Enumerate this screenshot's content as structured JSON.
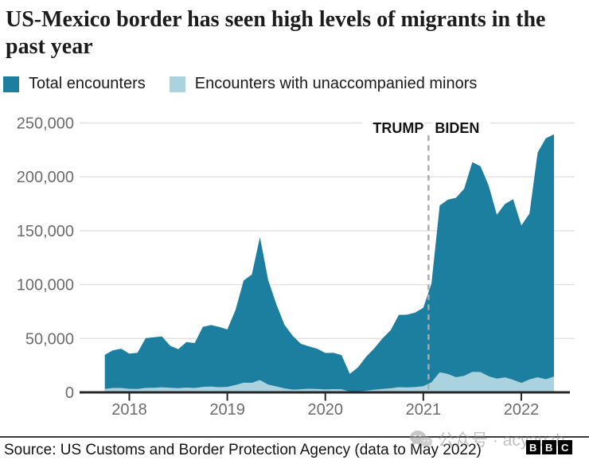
{
  "title": "US-Mexico border has seen high levels of migrants in the past year",
  "legend": [
    {
      "label": "Total encounters",
      "color": "#1d7f9f"
    },
    {
      "label": "Encounters with unaccompanied minors",
      "color": "#abd3df"
    }
  ],
  "annotations": {
    "left_of_line": "TRUMP",
    "right_of_line": "BIDEN"
  },
  "footer": {
    "source": "Source: US Customs and Border Protection Agency (data to May 2022)",
    "logo_blocks": [
      "B",
      "B",
      "C"
    ]
  },
  "watermark": {
    "text": "公众号 · acyauzh"
  },
  "chart_data": {
    "type": "area",
    "title": "US-Mexico border has seen high levels of migrants in the past year",
    "xlabel": "",
    "ylabel": "",
    "ylim": [
      0,
      250000
    ],
    "yticks": [
      0,
      50000,
      100000,
      150000,
      200000,
      250000
    ],
    "xticks": [
      "2018",
      "2019",
      "2020",
      "2021",
      "2022"
    ],
    "grid": "horizontal",
    "legend_position": "top",
    "annotation_line": {
      "between": [
        "2021-01",
        "2021-02"
      ],
      "fraction": 0.64,
      "style": "dashed",
      "labels": [
        "TRUMP",
        "BIDEN"
      ]
    },
    "x": [
      "2017-10",
      "2017-11",
      "2017-12",
      "2018-01",
      "2018-02",
      "2018-03",
      "2018-04",
      "2018-05",
      "2018-06",
      "2018-07",
      "2018-08",
      "2018-09",
      "2018-10",
      "2018-11",
      "2018-12",
      "2019-01",
      "2019-02",
      "2019-03",
      "2019-04",
      "2019-05",
      "2019-06",
      "2019-07",
      "2019-08",
      "2019-09",
      "2019-10",
      "2019-11",
      "2019-12",
      "2020-01",
      "2020-02",
      "2020-03",
      "2020-04",
      "2020-05",
      "2020-06",
      "2020-07",
      "2020-08",
      "2020-09",
      "2020-10",
      "2020-11",
      "2020-12",
      "2021-01",
      "2021-02",
      "2021-03",
      "2021-04",
      "2021-05",
      "2021-06",
      "2021-07",
      "2021-08",
      "2021-09",
      "2021-10",
      "2021-11",
      "2021-12",
      "2022-01",
      "2022-02",
      "2022-03",
      "2022-04",
      "2022-05"
    ],
    "series": [
      {
        "name": "Total encounters",
        "color": "#1d7f9f",
        "values": [
          34871,
          39051,
          40519,
          35905,
          36751,
          50308,
          51168,
          51862,
          43180,
          40011,
          46719,
          45745,
          60781,
          62469,
          60794,
          58317,
          76545,
          103731,
          109415,
          144116,
          104311,
          81777,
          62707,
          52546,
          45139,
          42643,
          40565,
          36585,
          36687,
          34460,
          17106,
          23237,
          33049,
          40929,
          50014,
          57674,
          71946,
          72113,
          74018,
          78414,
          101099,
          173337,
          178795,
          180597,
          188829,
          213593,
          209840,
          192001,
          164837,
          174845,
          179253,
          154874,
          165894,
          222574,
          235785,
          239416
        ]
      },
      {
        "name": "Encounters with unaccompanied minors",
        "color": "#abd3df",
        "values": [
          3168,
          4061,
          4066,
          3227,
          3122,
          4147,
          4302,
          4726,
          4208,
          3938,
          4396,
          4066,
          5109,
          5303,
          4766,
          5121,
          6832,
          8963,
          8871,
          11475,
          7174,
          5559,
          3716,
          2526,
          2844,
          3324,
          3112,
          2677,
          2940,
          2917,
          712,
          984,
          1576,
          2499,
          3065,
          3741,
          4822,
          4591,
          4852,
          5694,
          9271,
          18716,
          17062,
          14060,
          15255,
          18962,
          18847,
          14917,
          12766,
          13959,
          11573,
          8760,
          11996,
          14041,
          12201,
          14699
        ]
      }
    ]
  }
}
